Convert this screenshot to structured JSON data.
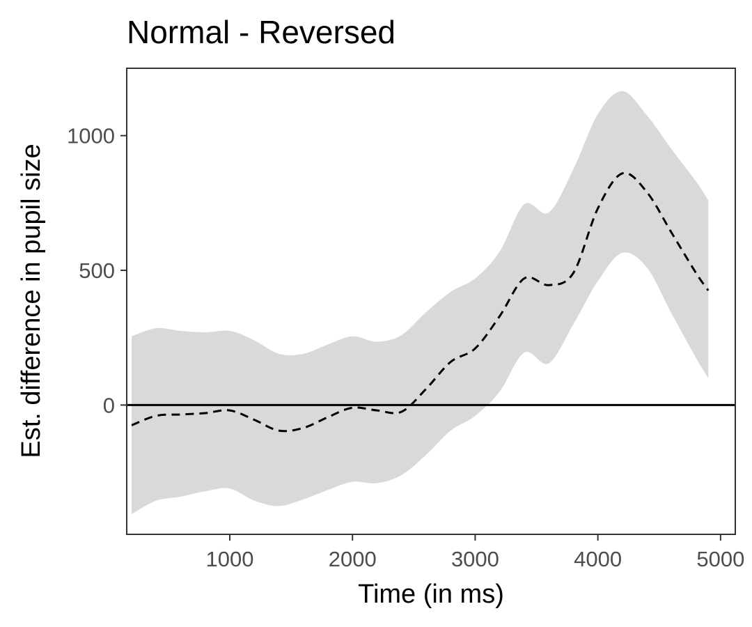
{
  "chart_data": {
    "type": "line",
    "title": "Normal - Reversed",
    "xlabel": "Time (in ms)",
    "ylabel": "Est. difference in pupil size",
    "xlim": [
      160,
      5120
    ],
    "ylim": [
      -480,
      1250
    ],
    "x_ticks": [
      1000,
      2000,
      3000,
      4000,
      5000
    ],
    "y_ticks": [
      0,
      500,
      1000
    ],
    "x_tick_labels": [
      "1000",
      "2000",
      "3000",
      "4000",
      "5000"
    ],
    "y_tick_labels": [
      "0",
      "500",
      "1000"
    ],
    "reference_line": 0,
    "grid": false,
    "series": [
      {
        "style": "dashed",
        "color": "#000000",
        "x": [
          200,
          400,
          600,
          800,
          1000,
          1200,
          1400,
          1600,
          1800,
          2000,
          2200,
          2400,
          2600,
          2800,
          3000,
          3200,
          3400,
          3600,
          3800,
          4000,
          4200,
          4400,
          4600,
          4800,
          4900
        ],
        "y": [
          -75,
          -40,
          -35,
          -30,
          -20,
          -55,
          -95,
          -85,
          -45,
          -10,
          -20,
          -25,
          60,
          160,
          210,
          330,
          470,
          445,
          490,
          730,
          860,
          790,
          640,
          490,
          425
        ]
      }
    ],
    "confidence_band": {
      "color": "#d9d9d9",
      "x": [
        200,
        400,
        600,
        800,
        1000,
        1200,
        1400,
        1600,
        1800,
        2000,
        2200,
        2400,
        2600,
        2800,
        3000,
        3200,
        3400,
        3600,
        3800,
        4000,
        4200,
        4400,
        4600,
        4800,
        4900
      ],
      "lower": [
        -405,
        -355,
        -340,
        -320,
        -310,
        -355,
        -375,
        -350,
        -315,
        -285,
        -290,
        -260,
        -185,
        -95,
        -40,
        50,
        195,
        155,
        300,
        460,
        565,
        510,
        340,
        175,
        100
      ],
      "upper": [
        255,
        285,
        275,
        270,
        275,
        240,
        190,
        190,
        225,
        255,
        235,
        260,
        345,
        420,
        470,
        570,
        745,
        715,
        875,
        1080,
        1165,
        1075,
        950,
        830,
        760
      ]
    }
  }
}
